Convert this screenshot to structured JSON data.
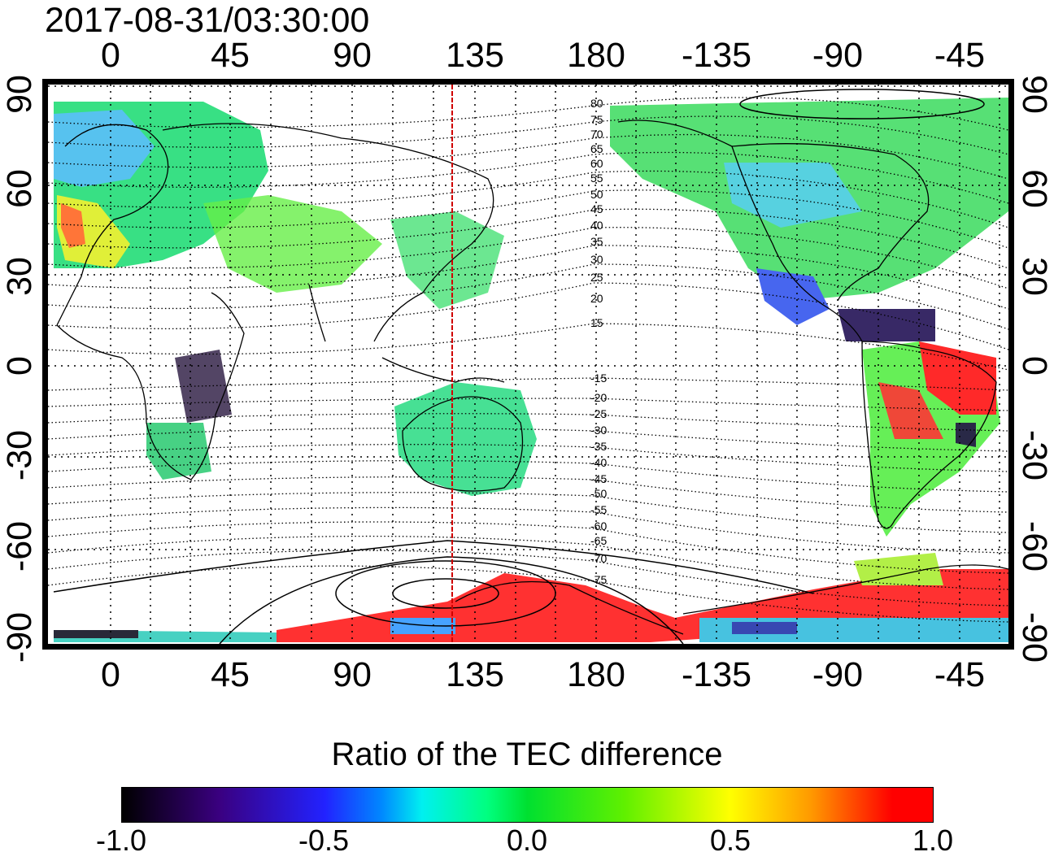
{
  "title": "2017-08-31/03:30:00",
  "lon_ticks": [
    "0",
    "45",
    "90",
    "135",
    "180",
    "-135",
    "-90",
    "-45"
  ],
  "lat_ticks": [
    "90",
    "60",
    "30",
    "0",
    "-30",
    "-60",
    "-90"
  ],
  "contour_labels_north": [
    "80",
    "75",
    "70",
    "65",
    "60",
    "55",
    "50",
    "45",
    "40",
    "35",
    "30",
    "25",
    "20",
    "15"
  ],
  "contour_labels_south": [
    "-15",
    "-20",
    "-25",
    "-30",
    "-35",
    "-40",
    "-45",
    "-50",
    "-55",
    "-60",
    "-65",
    "-70",
    "-75"
  ],
  "colorbar": {
    "title": "Ratio of the TEC difference",
    "ticks": [
      "-1.0",
      "-0.5",
      "0.0",
      "0.5",
      "1.0"
    ],
    "range": [
      -1.0,
      1.0
    ],
    "colors": [
      "#000000",
      "#0000ff",
      "#00ffff",
      "#00ff00",
      "#ffff00",
      "#ff0000"
    ]
  },
  "meridian_marker": {
    "color": "#d00000"
  }
}
